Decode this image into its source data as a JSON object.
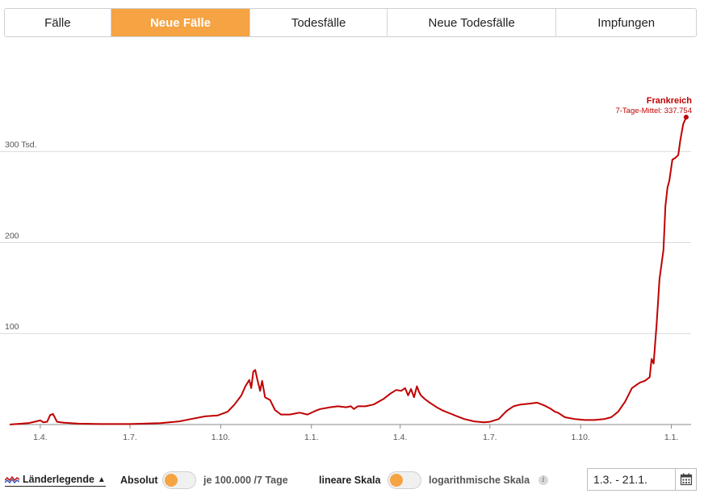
{
  "tabs": [
    {
      "label": "Fälle",
      "active": false
    },
    {
      "label": "Neue Fälle",
      "active": true
    },
    {
      "label": "Todesfälle",
      "active": false
    },
    {
      "label": "Neue Todesfälle",
      "active": false
    },
    {
      "label": "Impfungen",
      "active": false
    }
  ],
  "chart_data": {
    "type": "line",
    "y_unit_label": "300 Tsd.",
    "ylim": [
      0,
      345
    ],
    "y_ticks": [
      {
        "value": 100,
        "label": "100"
      },
      {
        "value": 200,
        "label": "200"
      },
      {
        "value": 300,
        "label": "300 Tsd."
      }
    ],
    "x_ticks": [
      "1.4.",
      "1.7.",
      "1.10.",
      "1.1.",
      "1.4.",
      "1.7.",
      "1.10.",
      "1.1."
    ],
    "x_tick_dates": [
      "2020-04-01",
      "2020-07-01",
      "2020-10-01",
      "2021-01-01",
      "2021-04-01",
      "2021-07-01",
      "2021-10-01",
      "2022-01-01"
    ],
    "x_range": [
      "2020-03-01",
      "2022-01-21"
    ],
    "grid": true,
    "series": [
      {
        "name": "Frankreich",
        "color": "#c00000",
        "annotation": "7-Tage-Mittel: 337.754",
        "points": [
          [
            "2020-03-01",
            0
          ],
          [
            "2020-03-20",
            1.5
          ],
          [
            "2020-03-28",
            3.5
          ],
          [
            "2020-04-01",
            4.5
          ],
          [
            "2020-04-04",
            2.5
          ],
          [
            "2020-04-08",
            3
          ],
          [
            "2020-04-11",
            10.5
          ],
          [
            "2020-04-14",
            11.5
          ],
          [
            "2020-04-18",
            3
          ],
          [
            "2020-04-25",
            2
          ],
          [
            "2020-05-10",
            1
          ],
          [
            "2020-06-01",
            0.5
          ],
          [
            "2020-07-01",
            0.5
          ],
          [
            "2020-08-01",
            1.5
          ],
          [
            "2020-08-20",
            3.5
          ],
          [
            "2020-09-01",
            6
          ],
          [
            "2020-09-15",
            9
          ],
          [
            "2020-09-28",
            10
          ],
          [
            "2020-10-08",
            14
          ],
          [
            "2020-10-15",
            22
          ],
          [
            "2020-10-22",
            32
          ],
          [
            "2020-10-26",
            42
          ],
          [
            "2020-10-30",
            49
          ],
          [
            "2020-11-01",
            40
          ],
          [
            "2020-11-03",
            58
          ],
          [
            "2020-11-05",
            60
          ],
          [
            "2020-11-07",
            50
          ],
          [
            "2020-11-10",
            37
          ],
          [
            "2020-11-12",
            48
          ],
          [
            "2020-11-15",
            30
          ],
          [
            "2020-11-20",
            27
          ],
          [
            "2020-11-25",
            16
          ],
          [
            "2020-12-01",
            11
          ],
          [
            "2020-12-10",
            11
          ],
          [
            "2020-12-20",
            13
          ],
          [
            "2020-12-28",
            11
          ],
          [
            "2021-01-05",
            15
          ],
          [
            "2021-01-10",
            17
          ],
          [
            "2021-01-20",
            19
          ],
          [
            "2021-01-28",
            20
          ],
          [
            "2021-02-05",
            19
          ],
          [
            "2021-02-10",
            20
          ],
          [
            "2021-02-13",
            17
          ],
          [
            "2021-02-17",
            20
          ],
          [
            "2021-02-25",
            20
          ],
          [
            "2021-03-05",
            22
          ],
          [
            "2021-03-15",
            28
          ],
          [
            "2021-03-22",
            34
          ],
          [
            "2021-03-28",
            38
          ],
          [
            "2021-04-02",
            37
          ],
          [
            "2021-04-06",
            40
          ],
          [
            "2021-04-09",
            32
          ],
          [
            "2021-04-12",
            39
          ],
          [
            "2021-04-15",
            30
          ],
          [
            "2021-04-18",
            42
          ],
          [
            "2021-04-20",
            36
          ],
          [
            "2021-04-22",
            32
          ],
          [
            "2021-04-26",
            28
          ],
          [
            "2021-05-01",
            24
          ],
          [
            "2021-05-08",
            19
          ],
          [
            "2021-05-15",
            15
          ],
          [
            "2021-05-22",
            12
          ],
          [
            "2021-05-29",
            9
          ],
          [
            "2021-06-05",
            6
          ],
          [
            "2021-06-15",
            3.5
          ],
          [
            "2021-06-25",
            2.5
          ],
          [
            "2021-07-01",
            3
          ],
          [
            "2021-07-10",
            6
          ],
          [
            "2021-07-18",
            15
          ],
          [
            "2021-07-25",
            20
          ],
          [
            "2021-08-01",
            22
          ],
          [
            "2021-08-10",
            23
          ],
          [
            "2021-08-18",
            24
          ],
          [
            "2021-08-25",
            21
          ],
          [
            "2021-09-01",
            17
          ],
          [
            "2021-09-05",
            14
          ],
          [
            "2021-09-08",
            13
          ],
          [
            "2021-09-15",
            8
          ],
          [
            "2021-09-25",
            6
          ],
          [
            "2021-10-05",
            5
          ],
          [
            "2021-10-15",
            5
          ],
          [
            "2021-10-25",
            6
          ],
          [
            "2021-11-01",
            8
          ],
          [
            "2021-11-08",
            14
          ],
          [
            "2021-11-15",
            25
          ],
          [
            "2021-11-22",
            40
          ],
          [
            "2021-11-30",
            46
          ],
          [
            "2021-12-05",
            48
          ],
          [
            "2021-12-10",
            52
          ],
          [
            "2021-12-12",
            72
          ],
          [
            "2021-12-14",
            67
          ],
          [
            "2021-12-17",
            110
          ],
          [
            "2021-12-20",
            160
          ],
          [
            "2021-12-24",
            192
          ],
          [
            "2021-12-26",
            240
          ],
          [
            "2021-12-28",
            260
          ],
          [
            "2021-12-30",
            268
          ],
          [
            "2022-01-02",
            291
          ],
          [
            "2022-01-05",
            293
          ],
          [
            "2022-01-08",
            296
          ],
          [
            "2022-01-10",
            312
          ],
          [
            "2022-01-13",
            330
          ],
          [
            "2022-01-16",
            337.754
          ]
        ]
      }
    ]
  },
  "controls": {
    "legend_label": "Länderlegende",
    "legend_arrow": "▲",
    "absolute_label": "Absolut",
    "per100k_label": "je 100.000 /7 Tage",
    "linear_label": "lineare Skala",
    "log_label": "logarithmische Skala",
    "info_icon": "i",
    "date_range": "1.3. - 21.1.",
    "accent": "#f5a343"
  }
}
